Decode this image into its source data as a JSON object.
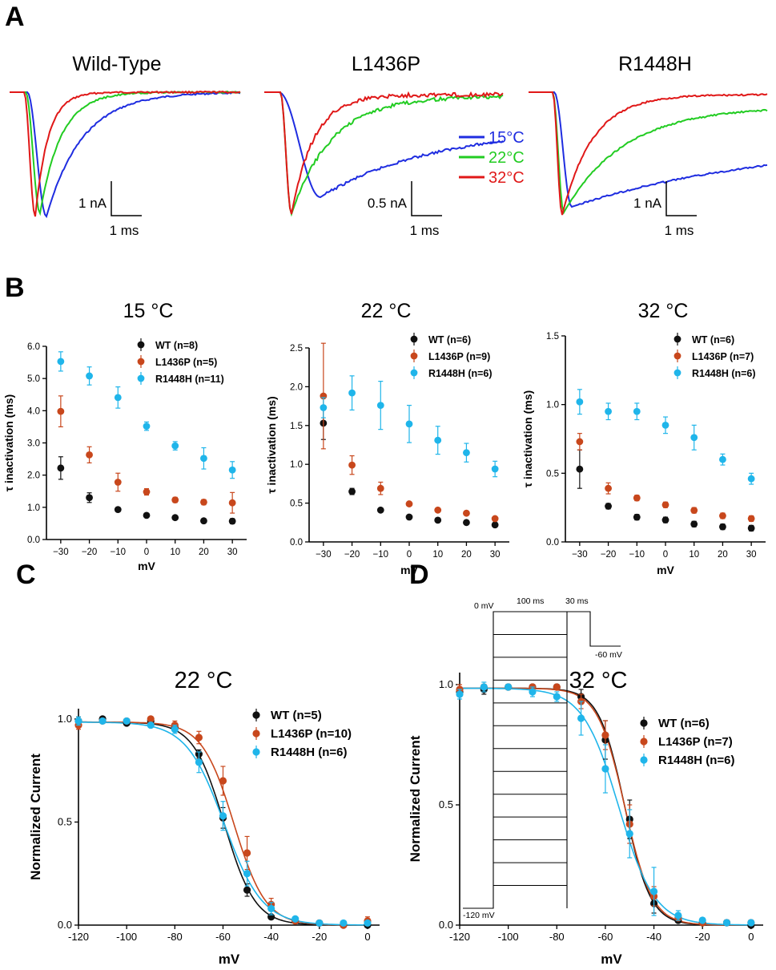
{
  "figure": {
    "panel_labels": [
      "A",
      "B",
      "C",
      "D"
    ],
    "traces": {
      "titles": [
        "Wild-Type",
        "L1436P",
        "R1448H"
      ],
      "temperatures": [
        {
          "label": "15°C",
          "color": "#1f2de0"
        },
        {
          "label": "22°C",
          "color": "#22cc22"
        },
        {
          "label": "32°C",
          "color": "#e01818"
        }
      ],
      "scale_bars": [
        {
          "current": "1 nA",
          "time": "1 ms"
        },
        {
          "current": "0.5 nA",
          "time": "1 ms"
        },
        {
          "current": "1 nA",
          "time": "1 ms"
        }
      ]
    },
    "colors": {
      "WT": "#111111",
      "L1436P": "#c8471c",
      "R1448H": "#1fb5ea"
    },
    "inset": {
      "hold": "0 mV",
      "pre": "100 ms",
      "test": "30 ms",
      "test_v": "-60 mV",
      "base": "-120 mV"
    }
  },
  "chart_data": [
    {
      "panel": "B",
      "type": "scatter",
      "title": "15 °C",
      "xlabel": "mV",
      "ylabel": "τ inactivation (ms)",
      "xlim": [
        -35,
        35
      ],
      "ylim": [
        0,
        6.0
      ],
      "xticks": [
        -30,
        -20,
        -10,
        0,
        10,
        20,
        30
      ],
      "xtick_labels": [
        "−30",
        "−20",
        "−10",
        "0",
        "10",
        "20",
        "30"
      ],
      "yticks": [
        0,
        1,
        2,
        3,
        4,
        5,
        6
      ],
      "ytick_labels": [
        "0.0",
        "1.0",
        "2.0",
        "3.0",
        "4.0",
        "5.0",
        "6.0"
      ],
      "x": [
        -30,
        -20,
        -10,
        0,
        10,
        20,
        30
      ],
      "series": [
        {
          "key": "WT",
          "name": "WT (n=8)",
          "values": [
            2.22,
            1.3,
            0.93,
            0.75,
            0.68,
            0.58,
            0.57
          ],
          "err": [
            0.35,
            0.15,
            0.06,
            0.05,
            0.05,
            0.05,
            0.08
          ]
        },
        {
          "key": "L1436P",
          "name": "L1436P (n=5)",
          "values": [
            3.98,
            2.63,
            1.78,
            1.48,
            1.23,
            1.16,
            1.14
          ],
          "err": [
            0.48,
            0.25,
            0.28,
            0.1,
            0.08,
            0.08,
            0.32
          ]
        },
        {
          "key": "R1448H",
          "name": "R1448H (n=11)",
          "values": [
            5.53,
            5.08,
            4.41,
            3.52,
            2.91,
            2.52,
            2.16
          ],
          "err": [
            0.3,
            0.28,
            0.33,
            0.13,
            0.13,
            0.33,
            0.26
          ]
        }
      ]
    },
    {
      "panel": "B",
      "type": "scatter",
      "title": "22 °C",
      "xlabel": "mV",
      "ylabel": "τ inactivation (ms)",
      "xlim": [
        -35,
        35
      ],
      "ylim": [
        0,
        2.5
      ],
      "xticks": [
        -30,
        -20,
        -10,
        0,
        10,
        20,
        30
      ],
      "xtick_labels": [
        "−30",
        "−20",
        "−10",
        "0",
        "10",
        "20",
        "30"
      ],
      "yticks": [
        0,
        0.5,
        1.0,
        1.5,
        2.0,
        2.5
      ],
      "ytick_labels": [
        "0.0",
        "0.5",
        "1.0",
        "1.5",
        "2.0",
        "2.5"
      ],
      "x": [
        -30,
        -20,
        -10,
        0,
        10,
        20,
        30
      ],
      "series": [
        {
          "key": "WT",
          "name": "WT (n=6)",
          "values": [
            1.53,
            0.65,
            0.41,
            0.32,
            0.28,
            0.25,
            0.22
          ],
          "err": [
            0.21,
            0.04,
            0.02,
            0.02,
            0.02,
            0.02,
            0.02
          ]
        },
        {
          "key": "L1436P",
          "name": "L1436P (n=9)",
          "values": [
            1.88,
            0.99,
            0.69,
            0.49,
            0.41,
            0.37,
            0.3
          ],
          "err": [
            0.68,
            0.12,
            0.08,
            0.02,
            0.02,
            0.02,
            0.02
          ]
        },
        {
          "key": "R1448H",
          "name": "R1448H (n=6)",
          "values": [
            1.73,
            1.92,
            1.76,
            1.52,
            1.31,
            1.15,
            0.94
          ],
          "err": [
            0.13,
            0.22,
            0.31,
            0.24,
            0.18,
            0.12,
            0.1
          ]
        }
      ]
    },
    {
      "panel": "B",
      "type": "scatter",
      "title": "32 °C",
      "xlabel": "mV",
      "ylabel": "τ inactivation (ms)",
      "xlim": [
        -35,
        35
      ],
      "ylim": [
        0,
        1.5
      ],
      "xticks": [
        -30,
        -20,
        -10,
        0,
        10,
        20,
        30
      ],
      "xtick_labels": [
        "−30",
        "−20",
        "−10",
        "0",
        "10",
        "20",
        "30"
      ],
      "yticks": [
        0,
        0.5,
        1.0,
        1.5
      ],
      "ytick_labels": [
        "0.0",
        "0.5",
        "1.0",
        "1.5"
      ],
      "x": [
        -30,
        -20,
        -10,
        0,
        10,
        20,
        30
      ],
      "series": [
        {
          "key": "WT",
          "name": "WT (n=6)",
          "values": [
            0.53,
            0.26,
            0.18,
            0.16,
            0.13,
            0.11,
            0.1
          ],
          "err": [
            0.14,
            0.02,
            0.02,
            0.02,
            0.02,
            0.02,
            0.02
          ]
        },
        {
          "key": "L1436P",
          "name": "L1436P (n=7)",
          "values": [
            0.73,
            0.39,
            0.32,
            0.27,
            0.23,
            0.19,
            0.17
          ],
          "err": [
            0.06,
            0.04,
            0.02,
            0.02,
            0.02,
            0.02,
            0.02
          ]
        },
        {
          "key": "R1448H",
          "name": "R1448H (n=6)",
          "values": [
            1.02,
            0.95,
            0.95,
            0.85,
            0.76,
            0.6,
            0.46
          ],
          "err": [
            0.09,
            0.06,
            0.06,
            0.06,
            0.09,
            0.04,
            0.04
          ]
        }
      ]
    },
    {
      "panel": "C",
      "type": "scatter",
      "title": "22 °C",
      "xlabel": "mV",
      "ylabel": "Normalized Current",
      "xlim": [
        -120,
        5
      ],
      "ylim": [
        0,
        1.05
      ],
      "xticks": [
        -120,
        -100,
        -80,
        -60,
        -40,
        -20,
        0
      ],
      "xtick_labels": [
        "-120",
        "-100",
        "-80",
        "-60",
        "-40",
        "-20",
        "0"
      ],
      "yticks": [
        0,
        0.5,
        1.0
      ],
      "ytick_labels": [
        "0.0",
        "0.5",
        "1.0"
      ],
      "x": [
        -120,
        -110,
        -100,
        -90,
        -80,
        -70,
        -60,
        -50,
        -40,
        -30,
        -20,
        -10,
        0
      ],
      "series": [
        {
          "key": "WT",
          "name": "WT (n=5)",
          "values": [
            0.99,
            1.0,
            0.98,
            0.99,
            0.96,
            0.83,
            0.52,
            0.17,
            0.04,
            0.02,
            0.01,
            0.0,
            0.0
          ],
          "err": [
            0.02,
            0.01,
            0.01,
            0.01,
            0.01,
            0.02,
            0.05,
            0.03,
            0.01,
            0.01,
            0.0,
            0.0,
            0.0
          ],
          "v_half": -59.5,
          "k": 6.4
        },
        {
          "key": "L1436P",
          "name": "L1436P (n=10)",
          "values": [
            0.97,
            0.99,
            0.99,
            1.0,
            0.97,
            0.91,
            0.7,
            0.35,
            0.1,
            0.02,
            0.01,
            0.0,
            0.02
          ],
          "err": [
            0.02,
            0.01,
            0.01,
            0.01,
            0.02,
            0.03,
            0.07,
            0.08,
            0.03,
            0.01,
            0.01,
            0.01,
            0.02
          ],
          "v_half": -55.5,
          "k": 6.6
        },
        {
          "key": "R1448H",
          "name": "R1448H (n=6)",
          "values": [
            0.99,
            0.99,
            0.99,
            0.97,
            0.95,
            0.79,
            0.53,
            0.25,
            0.08,
            0.03,
            0.01,
            0.01,
            0.01
          ],
          "err": [
            0.02,
            0.01,
            0.01,
            0.01,
            0.02,
            0.05,
            0.07,
            0.06,
            0.03,
            0.01,
            0.01,
            0.01,
            0.01
          ],
          "v_half": -59.5,
          "k": 7.9
        }
      ]
    },
    {
      "panel": "D",
      "type": "scatter",
      "title": "32 °C",
      "xlabel": "mV",
      "ylabel": "Normalized Current",
      "xlim": [
        -120,
        5
      ],
      "ylim": [
        0,
        1.05
      ],
      "xticks": [
        -120,
        -100,
        -80,
        -60,
        -40,
        -20,
        0
      ],
      "xtick_labels": [
        "-120",
        "-100",
        "-80",
        "-60",
        "-40",
        "-20",
        "0"
      ],
      "yticks": [
        0,
        0.5,
        1.0
      ],
      "ytick_labels": [
        "0.0",
        "0.5",
        "1.0"
      ],
      "x": [
        -120,
        -110,
        -100,
        -90,
        -80,
        -70,
        -60,
        -50,
        -40,
        -30,
        -20,
        -10,
        0
      ],
      "series": [
        {
          "key": "WT",
          "name": "WT (n=6)",
          "values": [
            0.97,
            0.98,
            0.99,
            0.99,
            0.99,
            0.95,
            0.77,
            0.44,
            0.09,
            0.02,
            0.01,
            0.01,
            0.0
          ],
          "err": [
            0.02,
            0.02,
            0.01,
            0.01,
            0.01,
            0.03,
            0.08,
            0.08,
            0.04,
            0.01,
            0.01,
            0.01,
            0.01
          ],
          "v_half": -52.0,
          "k": 5.3
        },
        {
          "key": "L1436P",
          "name": "L1436P (n=7)",
          "values": [
            0.98,
            0.99,
            0.99,
            0.99,
            0.99,
            0.93,
            0.79,
            0.42,
            0.12,
            0.03,
            0.01,
            0.01,
            0.01
          ],
          "err": [
            0.02,
            0.01,
            0.01,
            0.01,
            0.01,
            0.03,
            0.06,
            0.08,
            0.04,
            0.01,
            0.01,
            0.01,
            0.01
          ],
          "v_half": -52.0,
          "k": 5.6
        },
        {
          "key": "R1448H",
          "name": "R1448H (n=6)",
          "values": [
            0.96,
            0.99,
            0.99,
            0.97,
            0.95,
            0.86,
            0.65,
            0.38,
            0.14,
            0.04,
            0.02,
            0.01,
            0.01
          ],
          "err": [
            0.02,
            0.02,
            0.01,
            0.02,
            0.02,
            0.07,
            0.1,
            0.1,
            0.1,
            0.02,
            0.01,
            0.01,
            0.01
          ],
          "v_half": -54.5,
          "k": 7.4
        }
      ]
    }
  ]
}
